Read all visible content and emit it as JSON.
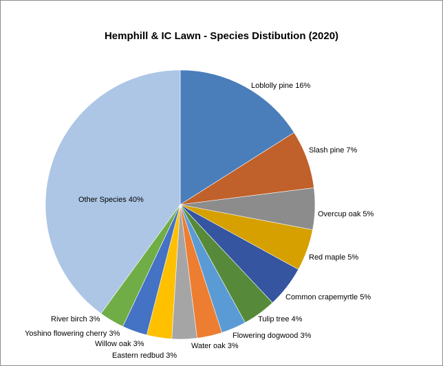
{
  "chart_data": {
    "type": "pie",
    "title": "Hemphill & IC Lawn - Species Distibution (2020)",
    "start_angle_deg": 0,
    "direction": "clockwise",
    "slices": [
      {
        "label": "Loblolly pine",
        "value": 16,
        "pct_label": "16%",
        "color": "#4a7ebb"
      },
      {
        "label": "Slash pine",
        "value": 7,
        "pct_label": "7%",
        "color": "#c0602a"
      },
      {
        "label": "Overcup oak",
        "value": 5,
        "pct_label": "5%",
        "color": "#8c8c8c"
      },
      {
        "label": "Red maple",
        "value": 5,
        "pct_label": "5%",
        "color": "#d5a000"
      },
      {
        "label": "Common crapemyrtle",
        "value": 5,
        "pct_label": "5%",
        "color": "#3555a0"
      },
      {
        "label": "Tulip tree",
        "value": 4,
        "pct_label": "4%",
        "color": "#568a3a"
      },
      {
        "label": "Flowering dogwood",
        "value": 3,
        "pct_label": "3%",
        "color": "#5b9bd5"
      },
      {
        "label": "Water oak",
        "value": 3,
        "pct_label": "3%",
        "color": "#ed7d31"
      },
      {
        "label": "Eastern redbud",
        "value": 3,
        "pct_label": "3%",
        "color": "#a5a5a5"
      },
      {
        "label": "Willow oak",
        "value": 3,
        "pct_label": "3%",
        "color": "#ffc000"
      },
      {
        "label": "Yoshino flowering cherry",
        "value": 3,
        "pct_label": "3%",
        "color": "#4472c4"
      },
      {
        "label": "River birch",
        "value": 3,
        "pct_label": "3%",
        "color": "#70ad47"
      },
      {
        "label": "Other Species",
        "value": 40,
        "pct_label": "40%",
        "color": "#adc6e5"
      }
    ]
  }
}
